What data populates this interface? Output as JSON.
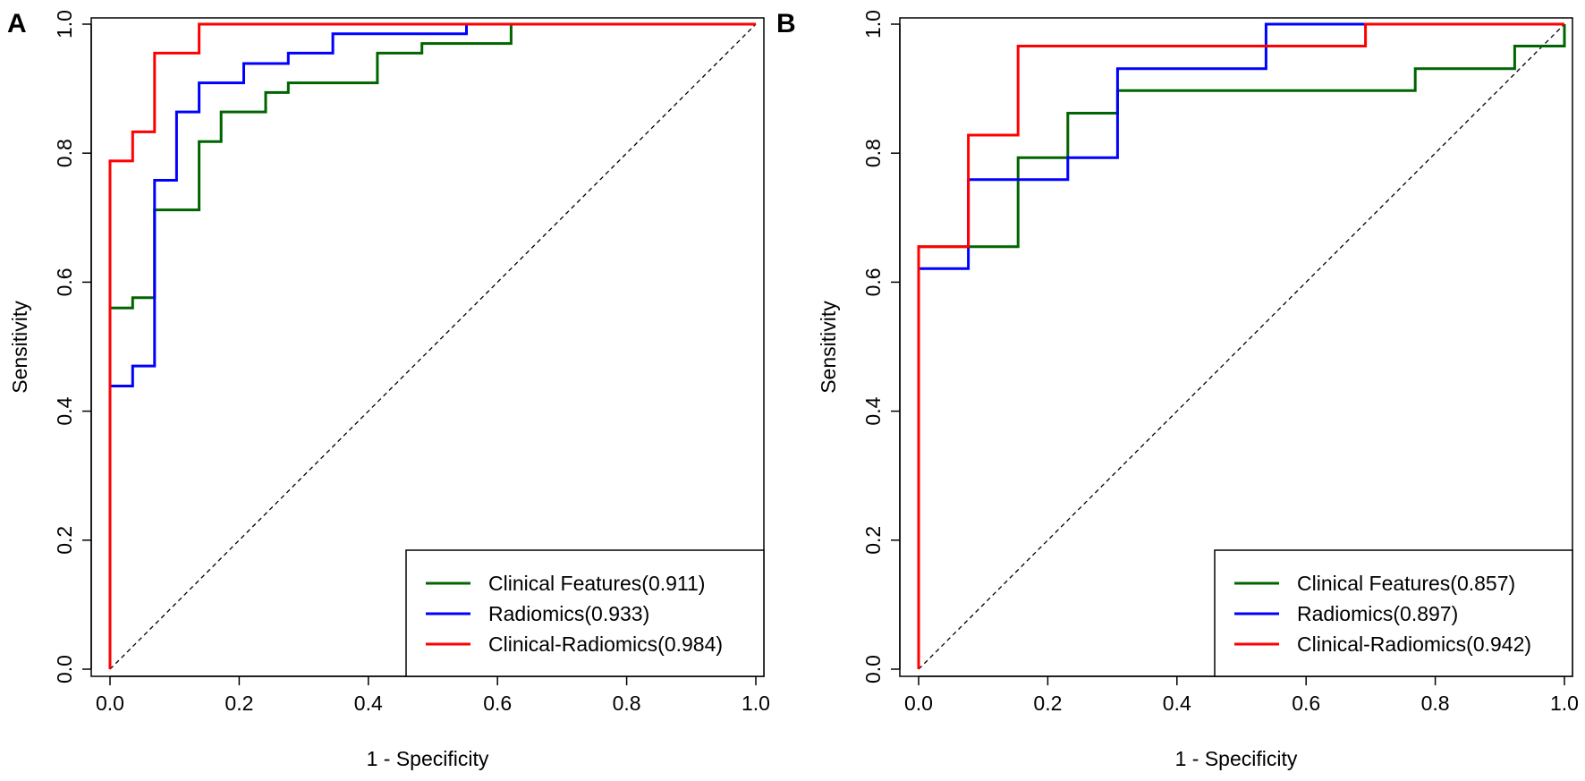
{
  "chart_data": [
    {
      "type": "line",
      "panel_label": "A",
      "xlabel": "1 - Specificity",
      "ylabel": "Sensitivity",
      "xlim": [
        0,
        1
      ],
      "ylim": [
        0,
        1
      ],
      "x_ticks": [
        "0.0",
        "0.2",
        "0.4",
        "0.6",
        "0.8",
        "1.0"
      ],
      "y_ticks": [
        "0.0",
        "0.2",
        "0.4",
        "0.6",
        "0.8",
        "1.0"
      ],
      "reference_line": "diagonal",
      "legend_position": "bottom-right",
      "series": [
        {
          "name": "Clinical Features",
          "auc": "(0.911)",
          "color": "#006400",
          "x": [
            0,
            0,
            0.035,
            0.035,
            0.069,
            0.069,
            0.138,
            0.138,
            0.172,
            0.172,
            0.241,
            0.241,
            0.276,
            0.276,
            0.414,
            0.414,
            0.483,
            0.483,
            0.621,
            0.621,
            1.0
          ],
          "y": [
            0,
            0.56,
            0.56,
            0.576,
            0.576,
            0.712,
            0.712,
            0.818,
            0.818,
            0.864,
            0.864,
            0.894,
            0.894,
            0.909,
            0.909,
            0.955,
            0.955,
            0.97,
            0.97,
            1.0,
            1.0
          ]
        },
        {
          "name": "Radiomics",
          "auc": "(0.933)",
          "color": "#0000ff",
          "x": [
            0,
            0,
            0.035,
            0.035,
            0.069,
            0.069,
            0.103,
            0.103,
            0.138,
            0.138,
            0.207,
            0.207,
            0.276,
            0.276,
            0.345,
            0.345,
            0.552,
            0.552,
            1.0
          ],
          "y": [
            0,
            0.439,
            0.439,
            0.47,
            0.47,
            0.758,
            0.758,
            0.864,
            0.864,
            0.909,
            0.909,
            0.939,
            0.939,
            0.955,
            0.955,
            0.985,
            0.985,
            1.0,
            1.0
          ]
        },
        {
          "name": "Clinical-Radiomics",
          "auc": "(0.984)",
          "color": "#ff0000",
          "x": [
            0,
            0,
            0.035,
            0.035,
            0.069,
            0.069,
            0.138,
            0.138,
            1.0
          ],
          "y": [
            0,
            0.788,
            0.788,
            0.833,
            0.833,
            0.955,
            0.955,
            1.0,
            1.0
          ]
        }
      ]
    },
    {
      "type": "line",
      "panel_label": "B",
      "xlabel": "1 - Specificity",
      "ylabel": "Sensitivity",
      "xlim": [
        0,
        1
      ],
      "ylim": [
        0,
        1
      ],
      "x_ticks": [
        "0.0",
        "0.2",
        "0.4",
        "0.6",
        "0.8",
        "1.0"
      ],
      "y_ticks": [
        "0.0",
        "0.2",
        "0.4",
        "0.6",
        "0.8",
        "1.0"
      ],
      "reference_line": "diagonal",
      "legend_position": "bottom-right",
      "series": [
        {
          "name": "Clinical Features",
          "auc": "(0.857)",
          "color": "#006400",
          "x": [
            0,
            0,
            0.077,
            0.077,
            0.154,
            0.154,
            0.231,
            0.231,
            0.308,
            0.308,
            0.769,
            0.769,
            0.923,
            0.923,
            1.0,
            1.0
          ],
          "y": [
            0,
            0.655,
            0.655,
            0.655,
            0.655,
            0.793,
            0.793,
            0.862,
            0.862,
            0.897,
            0.897,
            0.931,
            0.931,
            0.966,
            0.966,
            1.0
          ]
        },
        {
          "name": "Radiomics",
          "auc": "(0.897)",
          "color": "#0000ff",
          "x": [
            0,
            0,
            0.077,
            0.077,
            0.231,
            0.231,
            0.308,
            0.308,
            0.538,
            0.538,
            1.0
          ],
          "y": [
            0,
            0.621,
            0.621,
            0.759,
            0.759,
            0.793,
            0.793,
            0.931,
            0.931,
            1.0,
            1.0
          ]
        },
        {
          "name": "Clinical-Radiomics",
          "auc": "(0.942)",
          "color": "#ff0000",
          "x": [
            0,
            0,
            0.077,
            0.077,
            0.154,
            0.154,
            0.692,
            0.692,
            1.0
          ],
          "y": [
            0,
            0.655,
            0.655,
            0.828,
            0.828,
            0.966,
            0.966,
            1.0,
            1.0
          ]
        }
      ]
    }
  ]
}
